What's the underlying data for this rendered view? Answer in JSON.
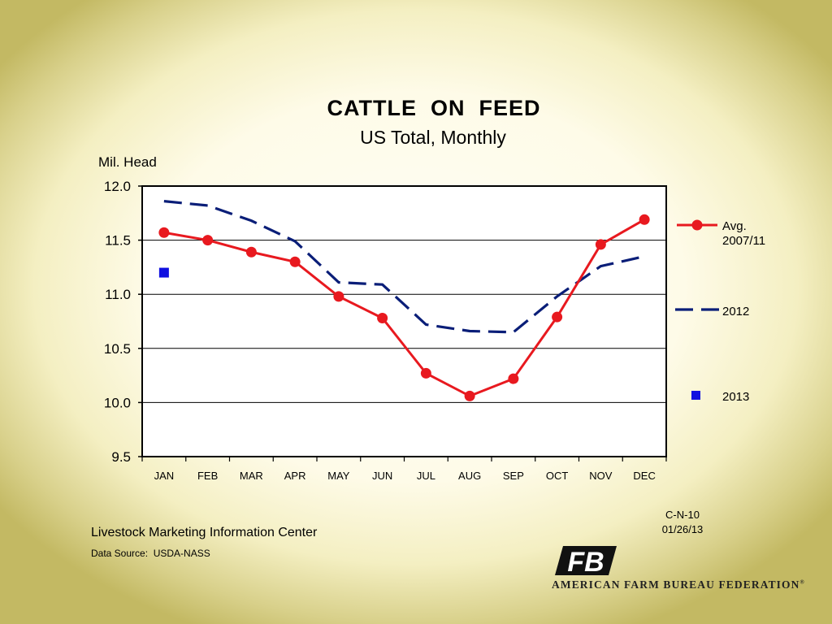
{
  "chart_data": {
    "type": "line",
    "title": "CATTLE  ON  FEED",
    "subtitle": "US Total, Monthly",
    "ylabel": "Mil. Head",
    "xlabel": "",
    "ylim": [
      9.5,
      12.0
    ],
    "yticks": [
      "12.0",
      "11.5",
      "11.0",
      "10.5",
      "10.0",
      "9.5"
    ],
    "ytick_values": [
      12.0,
      11.5,
      11.0,
      10.5,
      10.0,
      9.5
    ],
    "grid": true,
    "legend_position": "right",
    "categories": [
      "JAN",
      "FEB",
      "MAR",
      "APR",
      "MAY",
      "JUN",
      "JUL",
      "AUG",
      "SEP",
      "OCT",
      "NOV",
      "DEC"
    ],
    "series": [
      {
        "name_lines": [
          "Avg.",
          "2007/11"
        ],
        "style": "solid-circle-markers",
        "color": "#e8191f",
        "values": [
          11.57,
          11.5,
          11.39,
          11.3,
          10.98,
          10.78,
          10.27,
          10.06,
          10.22,
          10.79,
          11.46,
          11.69
        ]
      },
      {
        "name_lines": [
          "2012"
        ],
        "style": "dashed",
        "color": "#0a1e78",
        "values": [
          11.86,
          11.82,
          11.68,
          11.49,
          11.11,
          11.09,
          10.72,
          10.66,
          10.65,
          10.98,
          11.26,
          11.35
        ]
      },
      {
        "name_lines": [
          "2013"
        ],
        "style": "square-marker",
        "color": "#1010e0",
        "values": [
          11.2,
          null,
          null,
          null,
          null,
          null,
          null,
          null,
          null,
          null,
          null,
          null
        ]
      }
    ]
  },
  "footer": {
    "org": "Livestock Marketing Information Center",
    "source": "Data Source:  USDA-NASS",
    "code": "C-N-10",
    "date": "01/26/13",
    "logo_letters": "FB",
    "logo_text": "AMERICAN FARM BUREAU FEDERATION",
    "logo_mark": "®"
  }
}
